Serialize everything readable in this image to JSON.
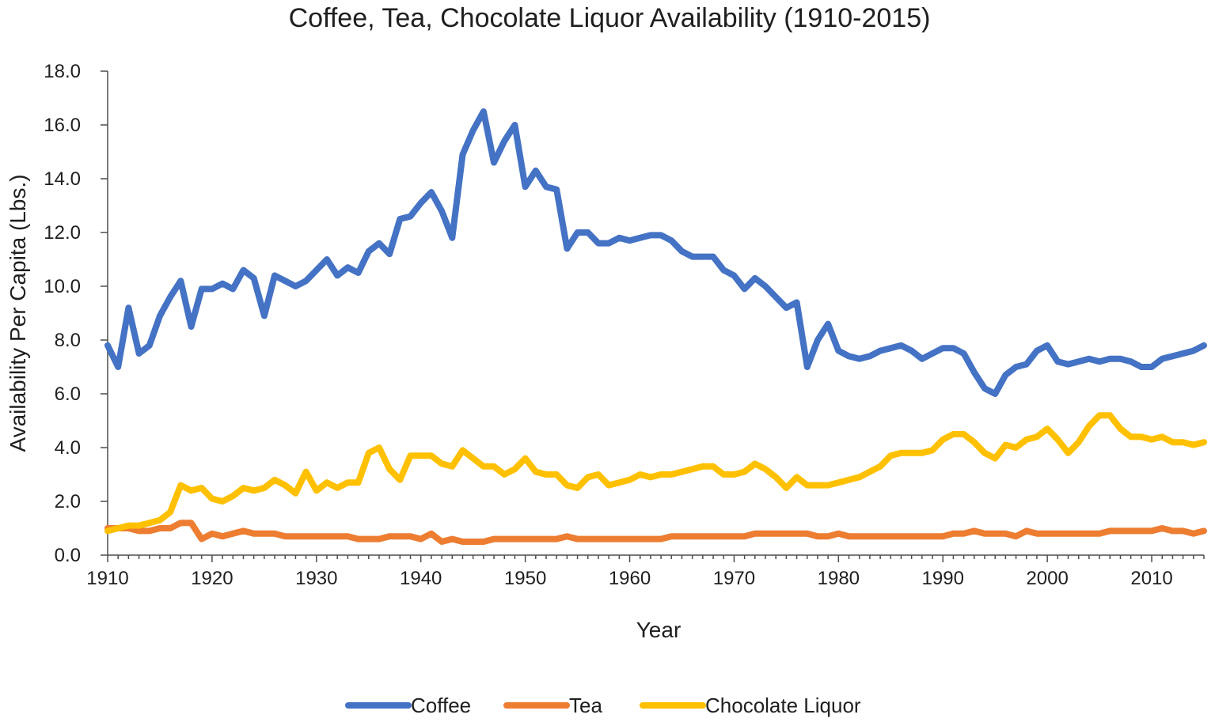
{
  "chart_data": {
    "type": "line",
    "title": "Coffee, Tea, Chocolate Liquor Availability (1910-2015)",
    "xlabel": "Year",
    "ylabel": "Availability Per Capita (Lbs.)",
    "xlim": [
      1910,
      2015
    ],
    "ylim": [
      0,
      18
    ],
    "grid": false,
    "legend_position": "bottom",
    "x_ticks": [
      1910,
      1920,
      1930,
      1940,
      1950,
      1960,
      1970,
      1980,
      1990,
      2000,
      2010
    ],
    "y_ticks": [
      "0.0",
      "2.0",
      "4.0",
      "6.0",
      "8.0",
      "10.0",
      "12.0",
      "14.0",
      "16.0",
      "18.0"
    ],
    "x_start": 1910,
    "series": [
      {
        "name": "Coffee",
        "color": "#4472C4",
        "values": [
          7.8,
          7.0,
          9.2,
          7.5,
          7.8,
          8.9,
          9.6,
          10.2,
          8.5,
          9.9,
          9.9,
          10.1,
          9.9,
          10.6,
          10.3,
          8.9,
          10.4,
          10.2,
          10.0,
          10.2,
          10.6,
          11.0,
          10.4,
          10.7,
          10.5,
          11.3,
          11.6,
          11.2,
          12.5,
          12.6,
          13.1,
          13.5,
          12.8,
          11.8,
          14.9,
          15.8,
          16.5,
          14.6,
          15.4,
          16.0,
          13.7,
          14.3,
          13.7,
          13.6,
          11.4,
          12.0,
          12.0,
          11.6,
          11.6,
          11.8,
          11.7,
          11.8,
          11.9,
          11.9,
          11.7,
          11.3,
          11.1,
          11.1,
          11.1,
          10.6,
          10.4,
          9.9,
          10.3,
          10.0,
          9.6,
          9.2,
          9.4,
          7.0,
          8.0,
          8.6,
          7.6,
          7.4,
          7.3,
          7.4,
          7.6,
          7.7,
          7.8,
          7.6,
          7.3,
          7.5,
          7.7,
          7.7,
          7.5,
          6.8,
          6.2,
          6.0,
          6.7,
          7.0,
          7.1,
          7.6,
          7.8,
          7.2,
          7.1,
          7.2,
          7.3,
          7.2,
          7.3,
          7.3,
          7.2,
          7.0,
          7.0,
          7.3,
          7.4,
          7.5,
          7.6,
          7.8
        ]
      },
      {
        "name": "Tea",
        "color": "#ED7D31",
        "values": [
          1.0,
          1.0,
          1.0,
          0.9,
          0.9,
          1.0,
          1.0,
          1.2,
          1.2,
          0.6,
          0.8,
          0.7,
          0.8,
          0.9,
          0.8,
          0.8,
          0.8,
          0.7,
          0.7,
          0.7,
          0.7,
          0.7,
          0.7,
          0.7,
          0.6,
          0.6,
          0.6,
          0.7,
          0.7,
          0.7,
          0.6,
          0.8,
          0.5,
          0.6,
          0.5,
          0.5,
          0.5,
          0.6,
          0.6,
          0.6,
          0.6,
          0.6,
          0.6,
          0.6,
          0.7,
          0.6,
          0.6,
          0.6,
          0.6,
          0.6,
          0.6,
          0.6,
          0.6,
          0.6,
          0.7,
          0.7,
          0.7,
          0.7,
          0.7,
          0.7,
          0.7,
          0.7,
          0.8,
          0.8,
          0.8,
          0.8,
          0.8,
          0.8,
          0.7,
          0.7,
          0.8,
          0.7,
          0.7,
          0.7,
          0.7,
          0.7,
          0.7,
          0.7,
          0.7,
          0.7,
          0.7,
          0.8,
          0.8,
          0.9,
          0.8,
          0.8,
          0.8,
          0.7,
          0.9,
          0.8,
          0.8,
          0.8,
          0.8,
          0.8,
          0.8,
          0.8,
          0.9,
          0.9,
          0.9,
          0.9,
          0.9,
          1.0,
          0.9,
          0.9,
          0.8,
          0.9
        ]
      },
      {
        "name": "Chocolate Liquor",
        "color": "#FFC000",
        "values": [
          0.9,
          1.0,
          1.1,
          1.1,
          1.2,
          1.3,
          1.6,
          2.6,
          2.4,
          2.5,
          2.1,
          2.0,
          2.2,
          2.5,
          2.4,
          2.5,
          2.8,
          2.6,
          2.3,
          3.1,
          2.4,
          2.7,
          2.5,
          2.7,
          2.7,
          3.8,
          4.0,
          3.2,
          2.8,
          3.7,
          3.7,
          3.7,
          3.4,
          3.3,
          3.9,
          3.6,
          3.3,
          3.3,
          3.0,
          3.2,
          3.6,
          3.1,
          3.0,
          3.0,
          2.6,
          2.5,
          2.9,
          3.0,
          2.6,
          2.7,
          2.8,
          3.0,
          2.9,
          3.0,
          3.0,
          3.1,
          3.2,
          3.3,
          3.3,
          3.0,
          3.0,
          3.1,
          3.4,
          3.2,
          2.9,
          2.5,
          2.9,
          2.6,
          2.6,
          2.6,
          2.7,
          2.8,
          2.9,
          3.1,
          3.3,
          3.7,
          3.8,
          3.8,
          3.8,
          3.9,
          4.3,
          4.5,
          4.5,
          4.2,
          3.8,
          3.6,
          4.1,
          4.0,
          4.3,
          4.4,
          4.7,
          4.3,
          3.8,
          4.2,
          4.8,
          5.2,
          5.2,
          4.7,
          4.4,
          4.4,
          4.3,
          4.4,
          4.2,
          4.2,
          4.1,
          4.2
        ]
      }
    ]
  }
}
